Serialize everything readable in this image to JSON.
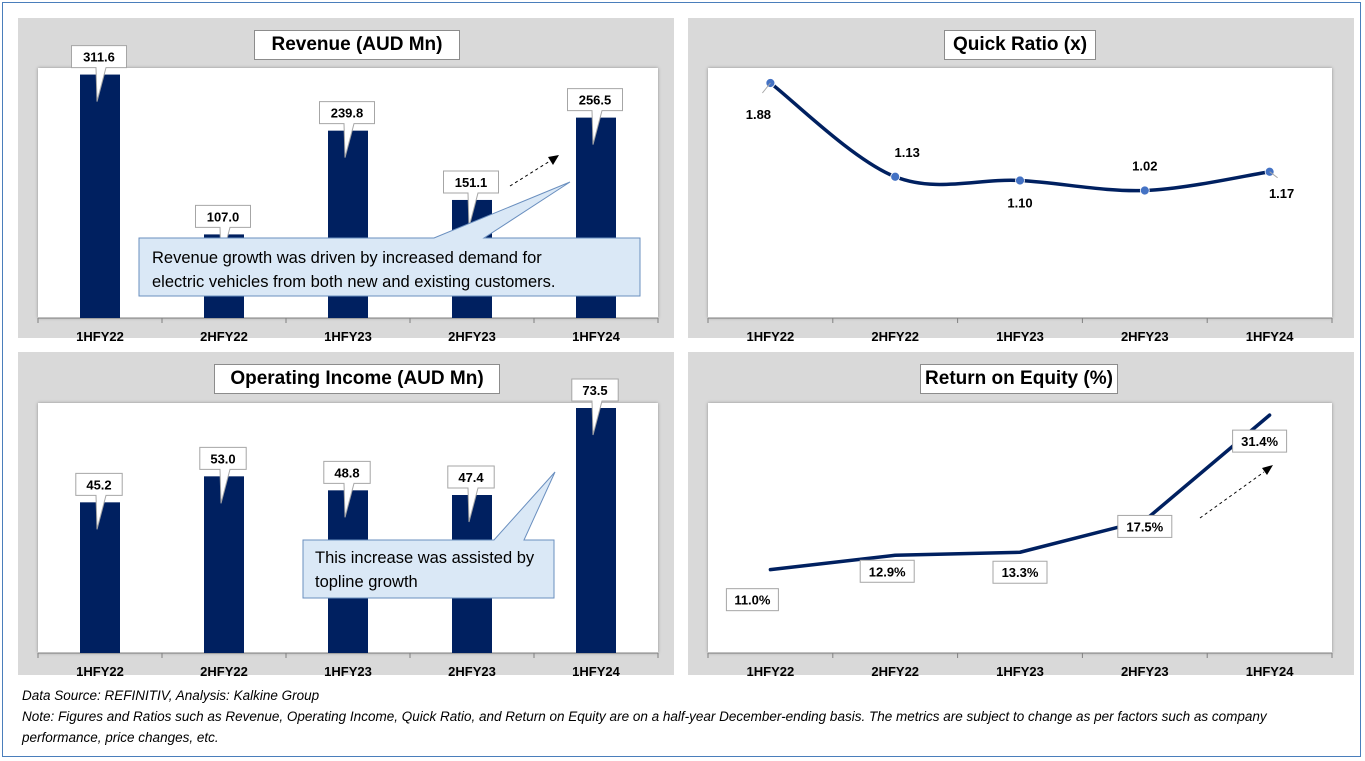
{
  "chart_data": [
    {
      "id": "revenue",
      "type": "bar",
      "title": "Revenue (AUD Mn)",
      "categories": [
        "1HFY22",
        "2HFY22",
        "1HFY23",
        "2HFY23",
        "1HFY24"
      ],
      "values": [
        311.6,
        107.0,
        239.8,
        151.1,
        256.5
      ],
      "data_labels": [
        "311.6",
        "107.0",
        "239.8",
        "151.1",
        "256.5"
      ],
      "ylim": [
        0,
        320
      ],
      "grid": false,
      "annotation": "Revenue growth was driven by increased demand for electric vehicles from both new and existing customers.",
      "annotation_lines": [
        "Revenue growth was driven by increased demand for",
        "electric vehicles from both new and existing customers."
      ]
    },
    {
      "id": "quick-ratio",
      "type": "line",
      "title": "Quick Ratio (x)",
      "categories": [
        "1HFY22",
        "2HFY22",
        "1HFY23",
        "2HFY23",
        "1HFY24"
      ],
      "values": [
        1.88,
        1.13,
        1.1,
        1.02,
        1.17
      ],
      "data_labels": [
        "1.88",
        "1.13",
        "1.10",
        "1.02",
        "1.17"
      ],
      "ylim": [
        0,
        2.0
      ],
      "grid": false,
      "smooth": true
    },
    {
      "id": "operating-income",
      "type": "bar",
      "title": "Operating Income (AUD Mn)",
      "categories": [
        "1HFY22",
        "2HFY22",
        "1HFY23",
        "2HFY23",
        "1HFY24"
      ],
      "values": [
        45.2,
        53.0,
        48.8,
        47.4,
        73.5
      ],
      "data_labels": [
        "45.2",
        "53.0",
        "48.8",
        "47.4",
        "73.5"
      ],
      "ylim": [
        0,
        75
      ],
      "grid": false,
      "annotation": "This increase was assisted by topline growth",
      "annotation_lines": [
        "This increase was assisted by",
        "topline growth"
      ]
    },
    {
      "id": "roe",
      "type": "line",
      "title": "Return on Equity (%)",
      "categories": [
        "1HFY22",
        "2HFY22",
        "1HFY23",
        "2HFY23",
        "1HFY24"
      ],
      "values": [
        11.0,
        12.9,
        13.3,
        17.5,
        31.4
      ],
      "data_labels": [
        "11.0%",
        "12.9%",
        "13.3%",
        "17.5%",
        "31.4%"
      ],
      "ylim": [
        0,
        33
      ],
      "grid": false,
      "smooth": false
    }
  ],
  "colors": {
    "bar": "#002060",
    "line": "#002060",
    "marker": "#4472c4",
    "panel_bg": "#d9d9d9",
    "callout_fill": "#dae8f6",
    "callout_border": "#6a8fbf"
  },
  "footer": {
    "source": "Data Source: REFINITIV, Analysis: Kalkine Group",
    "note": "Note: Figures and Ratios such as Revenue, Operating Income, Quick Ratio, and Return on Equity are on a half-year December-ending basis. The metrics are subject to change as per factors such as company performance, price changes, etc."
  }
}
